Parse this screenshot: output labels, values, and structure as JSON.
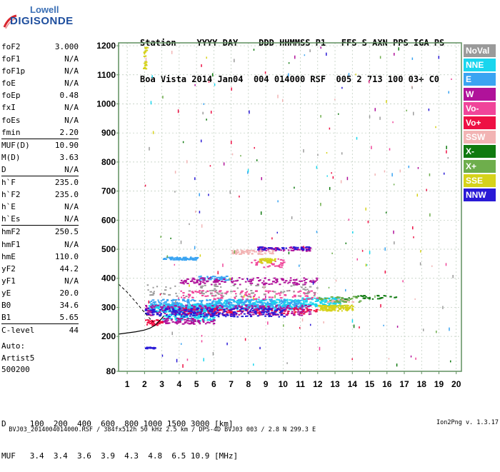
{
  "logo": {
    "line1": "Lowell",
    "line2": "DIGISONDE"
  },
  "header": {
    "line1": "Station    YYYY DAY    DDD HHMMSS P1   FFS S AXN PPS IGA PS",
    "line2": "Boa Vista 2014 Jan04  004 014000 RSF  005 2 713 100 03+ C0"
  },
  "params_group1": [
    {
      "label": "foF2",
      "value": "3.000"
    },
    {
      "label": "foF1",
      "value": "N/A"
    },
    {
      "label": "foF1p",
      "value": "N/A"
    },
    {
      "label": "foE",
      "value": "N/A"
    },
    {
      "label": "foEp",
      "value": "0.48"
    },
    {
      "label": "fxI",
      "value": "N/A"
    },
    {
      "label": "foEs",
      "value": "N/A"
    },
    {
      "label": "fmin",
      "value": "2.20"
    }
  ],
  "params_group2": [
    {
      "label": "MUF(D)",
      "value": "10.90"
    },
    {
      "label": "M(D)",
      "value": "3.63"
    },
    {
      "label": "D",
      "value": "N/A"
    }
  ],
  "params_group3": [
    {
      "label": "h`F",
      "value": "235.0"
    },
    {
      "label": "h`F2",
      "value": "235.0"
    },
    {
      "label": "h`E",
      "value": "N/A"
    },
    {
      "label": "h`Es",
      "value": "N/A"
    }
  ],
  "params_group4": [
    {
      "label": "hmF2",
      "value": "250.5"
    },
    {
      "label": "hmF1",
      "value": "N/A"
    },
    {
      "label": "hmE",
      "value": "110.0"
    },
    {
      "label": "yF2",
      "value": "44.2"
    },
    {
      "label": "yF1",
      "value": "N/A"
    },
    {
      "label": "yE",
      "value": "20.0"
    },
    {
      "label": "B0",
      "value": "34.6"
    },
    {
      "label": "B1",
      "value": "5.65"
    }
  ],
  "params_group5": [
    {
      "label": "C-level",
      "value": "44"
    }
  ],
  "auto": {
    "line1": "Auto:",
    "line2": "Artist5",
    "line3": "500200"
  },
  "legend": [
    {
      "label": "NoVal",
      "color": "#9a9a9a"
    },
    {
      "label": "NNE",
      "color": "#19d6ee"
    },
    {
      "label": "E",
      "color": "#3aa4f2"
    },
    {
      "label": "W",
      "color": "#b0129a"
    },
    {
      "label": "Vo-",
      "color": "#f0459a"
    },
    {
      "label": "Vo+",
      "color": "#ee1044"
    },
    {
      "label": "SSW",
      "color": "#f2b4b4"
    },
    {
      "label": "X-",
      "color": "#0f7a0f"
    },
    {
      "label": "X+",
      "color": "#6eae4c"
    },
    {
      "label": "SSE",
      "color": "#d6d21a"
    },
    {
      "label": "NNW",
      "color": "#2a1ad6"
    }
  ],
  "bottom": {
    "d_line": "D     100  200  400  600  800 1000 1500 3000 [km]",
    "muf_line": "MUF   3.4  3.4  3.6  3.9  4.3  4.8  6.5 10.9 [MHz]"
  },
  "footer": {
    "left": "BVJ03_2014004014000.RSF / 384fx512h 50 kHz 2.5 km / DPS-4D BVJ03 003 / 2.8 N 299.3 E",
    "right": "Ion2Png v. 1.3.17"
  },
  "chart_data": {
    "type": "scatter",
    "title": "",
    "xlabel": "",
    "ylabel": "",
    "xlim": [
      0.5,
      20.3
    ],
    "ylim": [
      80,
      1210
    ],
    "xticks": [
      1,
      2,
      3,
      4,
      5,
      6,
      7,
      8,
      9,
      10,
      11,
      12,
      13,
      14,
      15,
      16,
      17,
      18,
      19,
      20
    ],
    "yticks": [
      80,
      200,
      300,
      400,
      500,
      600,
      700,
      800,
      900,
      1000,
      1100,
      1200
    ],
    "grid": true,
    "trace_curve": [
      [
        0.5,
        208
      ],
      [
        1.0,
        212
      ],
      [
        1.5,
        216
      ],
      [
        2.0,
        222
      ],
      [
        2.3,
        228
      ],
      [
        2.6,
        238
      ],
      [
        2.8,
        250
      ],
      [
        3.0,
        262
      ],
      [
        3.1,
        270
      ]
    ],
    "dashed_curve": [
      [
        0.5,
        380
      ],
      [
        1.0,
        352
      ],
      [
        1.5,
        318
      ],
      [
        2.0,
        282
      ],
      [
        2.3,
        262
      ],
      [
        2.5,
        250
      ]
    ],
    "series": [
      {
        "name": "NNE",
        "clusters": [
          [
            2.2,
            6.0,
            285,
            315,
            320
          ],
          [
            6.0,
            11.0,
            295,
            330,
            320
          ],
          [
            11.0,
            13.5,
            305,
            335,
            150
          ],
          [
            3.0,
            6.0,
            255,
            280,
            120
          ]
        ]
      },
      {
        "name": "E",
        "clusters": [
          [
            2.2,
            11.0,
            300,
            330,
            260
          ],
          [
            3.0,
            5.0,
            465,
            475,
            60
          ],
          [
            5.0,
            7.0,
            395,
            410,
            60
          ]
        ]
      },
      {
        "name": "W",
        "clusters": [
          [
            2.0,
            11.5,
            275,
            310,
            320
          ],
          [
            4.0,
            12.0,
            380,
            405,
            140
          ],
          [
            8.5,
            11.5,
            495,
            510,
            70
          ],
          [
            3.0,
            6.0,
            245,
            265,
            80
          ]
        ]
      },
      {
        "name": "Vo-",
        "clusters": [
          [
            4.0,
            12.0,
            330,
            360,
            110
          ],
          [
            8.0,
            10.0,
            440,
            470,
            40
          ]
        ]
      },
      {
        "name": "Vo+",
        "clusters": [
          [
            2.0,
            3.0,
            240,
            260,
            40
          ],
          [
            4.0,
            12.0,
            280,
            300,
            90
          ]
        ]
      },
      {
        "name": "SSW",
        "clusters": [
          [
            7.0,
            9.5,
            485,
            500,
            70
          ],
          [
            12.5,
            14.0,
            320,
            330,
            30
          ]
        ]
      },
      {
        "name": "X-",
        "clusters": [
          [
            13.5,
            16.5,
            330,
            345,
            30
          ]
        ]
      },
      {
        "name": "X+",
        "clusters": [
          [
            12.0,
            14.5,
            320,
            340,
            35
          ]
        ]
      },
      {
        "name": "SSE",
        "clusters": [
          [
            12.0,
            14.0,
            290,
            310,
            110
          ],
          [
            8.5,
            9.5,
            455,
            470,
            40
          ],
          [
            1.9,
            2.1,
            1120,
            1200,
            20
          ]
        ]
      },
      {
        "name": "NNW",
        "clusters": [
          [
            2.0,
            10.0,
            270,
            300,
            200
          ],
          [
            2.0,
            2.6,
            160,
            165,
            20
          ],
          [
            8.5,
            11.5,
            500,
            510,
            40
          ]
        ]
      },
      {
        "name": "NoVal",
        "clusters": [
          [
            2.0,
            12.0,
            340,
            380,
            90
          ]
        ]
      }
    ],
    "frame_color": "#5f8f5f"
  }
}
